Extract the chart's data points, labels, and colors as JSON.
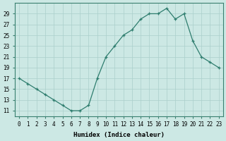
{
  "x": [
    0,
    1,
    2,
    3,
    4,
    5,
    6,
    7,
    8,
    9,
    10,
    11,
    12,
    13,
    14,
    15,
    16,
    17,
    18,
    19,
    20,
    21,
    22,
    23
  ],
  "y": [
    17,
    16,
    15,
    14,
    13,
    12,
    11,
    11,
    12,
    17,
    21,
    23,
    25,
    26,
    28,
    29,
    29,
    30,
    28,
    29,
    24,
    21,
    20,
    19
  ],
  "line_color": "#2e7d6e",
  "marker": "+",
  "bg_color": "#cce8e4",
  "grid_color": "#aacfcb",
  "xlabel": "Humidex (Indice chaleur)",
  "xlim": [
    -0.5,
    23.5
  ],
  "ylim": [
    10.0,
    31.0
  ],
  "yticks": [
    11,
    13,
    15,
    17,
    19,
    21,
    23,
    25,
    27,
    29
  ],
  "xtick_labels": [
    "0",
    "1",
    "2",
    "3",
    "4",
    "5",
    "6",
    "7",
    "8",
    "9",
    "10",
    "11",
    "12",
    "13",
    "14",
    "15",
    "16",
    "17",
    "18",
    "19",
    "20",
    "21",
    "22",
    "23"
  ],
  "label_fontsize": 6.5,
  "tick_fontsize": 5.5
}
